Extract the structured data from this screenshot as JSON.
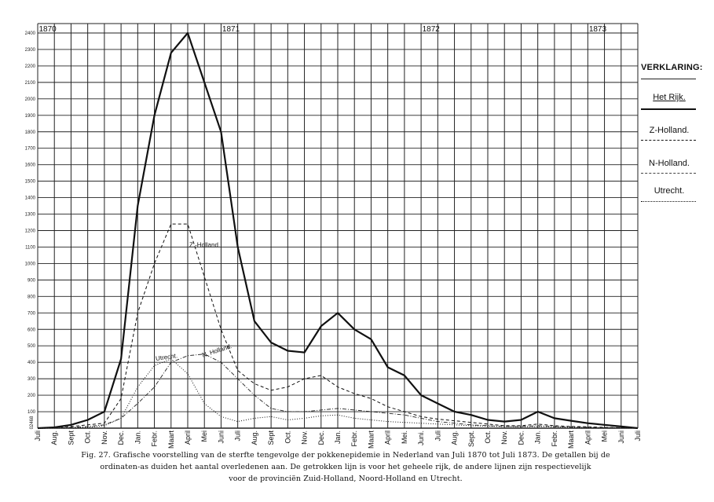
{
  "chart_data": {
    "type": "line",
    "year_labels": [
      "1870",
      "1871",
      "1872",
      "1873"
    ],
    "x_labels": [
      "Juli",
      "Aug.",
      "Sept",
      "Oct.",
      "Nov.",
      "Dec.",
      "Jan.",
      "Febr.",
      "Maart",
      "April",
      "Mei",
      "Juni",
      "Juli",
      "Aug.",
      "Sept",
      "Oct.",
      "Nov.",
      "Dec.",
      "Jan.",
      "Febr.",
      "Maart",
      "April",
      "Mei.",
      "Juni.",
      "Juli",
      "Aug.",
      "Sept.",
      "Oct.",
      "Nov.",
      "Dec.",
      "Jan.",
      "Febr.",
      "Maart",
      "April",
      "Mei",
      "Juni",
      "Juli"
    ],
    "y_ticks": [
      2400,
      2300,
      2200,
      2100,
      2000,
      1900,
      1800,
      1700,
      1600,
      1500,
      1400,
      1300,
      1200,
      1100,
      1000,
      900,
      800,
      700,
      600,
      500,
      400,
      300,
      200,
      100,
      0
    ],
    "ylim": [
      0,
      2400
    ],
    "y_axis_note": "02468",
    "series": [
      {
        "name": "Het Rijk.",
        "style": "solid-thick",
        "values": [
          0,
          5,
          20,
          50,
          100,
          420,
          1350,
          1900,
          2280,
          2400,
          2100,
          1800,
          1100,
          650,
          520,
          470,
          460,
          620,
          700,
          600,
          540,
          370,
          320,
          200,
          150,
          100,
          80,
          50,
          40,
          50,
          100,
          60,
          45,
          30,
          20,
          10,
          0
        ]
      },
      {
        "name": "Z-Holland.",
        "style": "dashed",
        "values": [
          0,
          5,
          10,
          20,
          30,
          180,
          700,
          1000,
          1240,
          1240,
          920,
          600,
          350,
          270,
          230,
          250,
          300,
          320,
          250,
          210,
          180,
          130,
          100,
          70,
          55,
          45,
          35,
          25,
          15,
          15,
          25,
          15,
          10,
          8,
          5,
          3,
          0
        ]
      },
      {
        "name": "N-Holland.",
        "style": "dash-dot",
        "values": [
          0,
          0,
          5,
          10,
          20,
          60,
          150,
          250,
          400,
          440,
          450,
          400,
          300,
          200,
          120,
          100,
          100,
          110,
          120,
          110,
          100,
          90,
          80,
          60,
          40,
          30,
          20,
          15,
          10,
          10,
          15,
          10,
          8,
          5,
          3,
          2,
          0
        ]
      },
      {
        "name": "Utrecht.",
        "style": "dotted",
        "values": [
          0,
          0,
          2,
          5,
          15,
          60,
          250,
          380,
          420,
          330,
          150,
          70,
          40,
          60,
          70,
          50,
          60,
          75,
          80,
          60,
          50,
          40,
          35,
          30,
          25,
          20,
          15,
          12,
          10,
          8,
          10,
          8,
          5,
          4,
          3,
          2,
          0
        ]
      }
    ],
    "annotations": {
      "zholland": "Z.-Holland.",
      "utrecht": "Utrecht.",
      "nholland": "N. Holland."
    },
    "grid": true,
    "legend_position": "right"
  },
  "legend": {
    "title": "VERKLARING:",
    "items": [
      "Het Rijk.",
      "Z-Holland.",
      "N-Holland.",
      "Utrecht."
    ]
  },
  "caption": {
    "line1": "Fig. 27.  Grafische voorstelling van de sterfte tengevolge der pokkenepidemie in Nederland van Juli 1870 tot Juli 1873.  De getallen bij de",
    "line2": "ordinaten-as duiden het aantal  overledenen  aan.  De getrokken lijn is voor het geheele rijk, de andere lijnen zijn respectievelijk",
    "line3": "voor de provinciën Zuid-Holland, Noord-Holland en Utrecht."
  }
}
